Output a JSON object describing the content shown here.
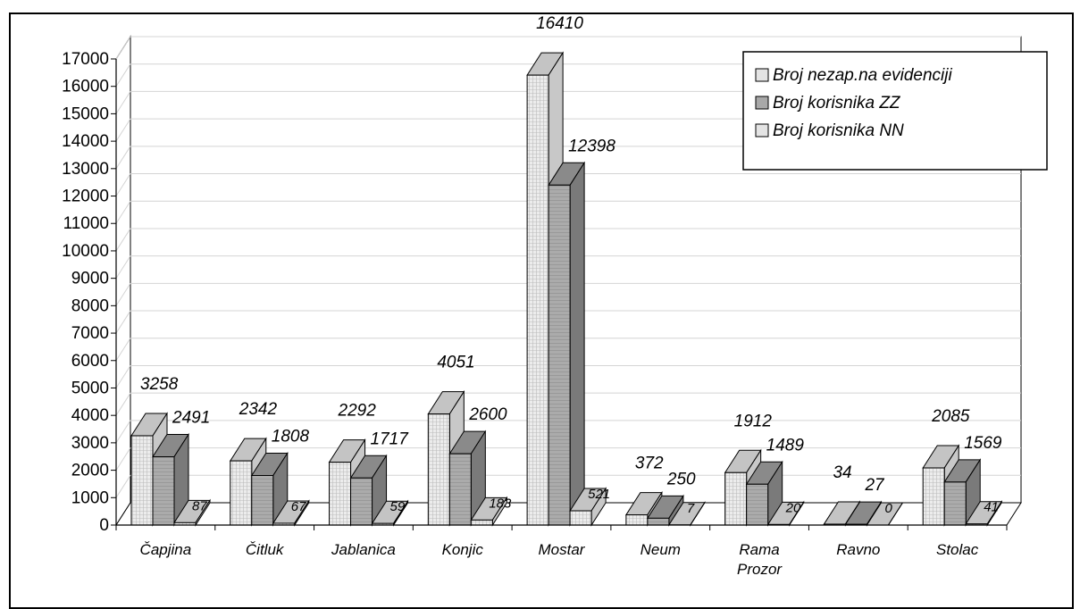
{
  "chart_data": {
    "type": "bar",
    "style": "3d-clustered",
    "categories": [
      [
        "Čapjina"
      ],
      [
        "Čitluk"
      ],
      [
        "Jablanica"
      ],
      [
        "Konjic"
      ],
      [
        "Mostar"
      ],
      [
        "Neum"
      ],
      [
        "Rama",
        "Prozor"
      ],
      [
        "Ravno"
      ],
      [
        "Stolac"
      ]
    ],
    "series": [
      {
        "name": "Broj nezap.na evidenciji",
        "values": [
          3258,
          2342,
          2292,
          4051,
          16410,
          372,
          1912,
          34,
          2085
        ],
        "color": "#e4e4e4"
      },
      {
        "name": "Broj korisnika ZZ",
        "values": [
          2491,
          1808,
          1717,
          2600,
          12398,
          250,
          1489,
          27,
          1569
        ],
        "color": "#a8a8a8"
      },
      {
        "name": "Broj korisnika  NN",
        "values": [
          87,
          67,
          59,
          183,
          521,
          7,
          20,
          0,
          41
        ],
        "color": "#e4e4e4"
      }
    ],
    "yticks": [
      "0",
      "1000",
      "2000",
      "3000",
      "4000",
      "5000",
      "6000",
      "7000",
      "8000",
      "9000",
      "10000",
      "11000",
      "12000",
      "13000",
      "14000",
      "15000",
      "16000",
      "17000"
    ],
    "ylim": [
      0,
      17000
    ],
    "grid": true,
    "legend": "top-right",
    "title": "",
    "xlabel": "",
    "ylabel": ""
  }
}
